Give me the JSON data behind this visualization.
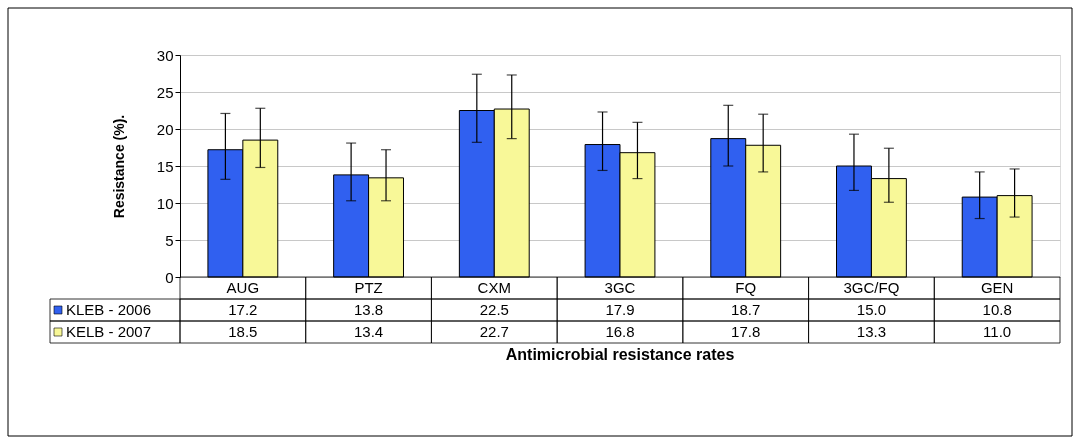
{
  "chart_data": {
    "type": "bar",
    "xlabel": "Antimicrobial resistance rates",
    "ylabel": "Resistance (%).",
    "categories": [
      "AUG",
      "PTZ",
      "CXM",
      "3GC",
      "FQ",
      "3GC/FQ",
      "GEN"
    ],
    "ylim": [
      0,
      30
    ],
    "yticks": [
      0,
      5,
      10,
      15,
      20,
      25,
      30
    ],
    "grid": "y",
    "legend": "bottom left",
    "series": [
      {
        "name": "KLEB - 2006",
        "color": "#3060f0",
        "values": [
          17.2,
          13.8,
          22.5,
          17.9,
          18.7,
          15.0,
          10.8
        ],
        "errors": [
          [
            13.2,
            22.1
          ],
          [
            10.3,
            18.1
          ],
          [
            18.2,
            27.4
          ],
          [
            14.4,
            22.3
          ],
          [
            15.0,
            23.2
          ],
          [
            11.7,
            19.3
          ],
          [
            7.9,
            14.2
          ]
        ],
        "value_labels": [
          "17.2",
          "13.8",
          "22.5",
          "17.9",
          "18.7",
          "15.0",
          "10.8"
        ]
      },
      {
        "name": "KELB - 2007",
        "color": "#f8f898",
        "values": [
          18.5,
          13.4,
          22.7,
          16.8,
          17.8,
          13.3,
          11.0
        ],
        "errors": [
          [
            14.8,
            22.8
          ],
          [
            10.3,
            17.2
          ],
          [
            18.7,
            27.3
          ],
          [
            13.3,
            20.9
          ],
          [
            14.2,
            22.0
          ],
          [
            10.1,
            17.4
          ],
          [
            8.1,
            14.6
          ]
        ],
        "value_labels": [
          "18.5",
          "13.4",
          "22.7",
          "16.8",
          "17.8",
          "13.3",
          "11.0"
        ]
      }
    ]
  }
}
